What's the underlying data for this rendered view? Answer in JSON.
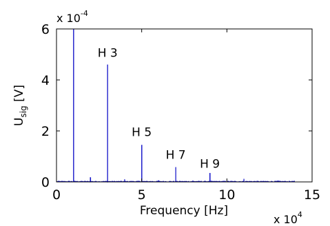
{
  "chart_data": {
    "type": "line",
    "title": "",
    "xlabel": "Frequency [Hz]",
    "ylabel_main": "U",
    "ylabel_sub": "sig",
    "ylabel_unit": " [V]",
    "x_multiplier_base": "x 10",
    "x_multiplier_exp": "4",
    "y_multiplier_base": "x 10",
    "y_multiplier_exp": "-4",
    "xlim": [
      0,
      15
    ],
    "ylim": [
      0,
      6
    ],
    "x_ticks": [
      0,
      5,
      10,
      15
    ],
    "x_tick_labels": [
      "0",
      "5",
      "10",
      "15"
    ],
    "y_ticks": [
      0,
      2,
      4,
      6
    ],
    "y_tick_labels": [
      "0",
      "2",
      "4",
      "6"
    ],
    "grid": false,
    "line_color": "#1010c8",
    "x_data_end": 14,
    "noise_level": 0.03,
    "peaks": [
      {
        "x": 1.0,
        "y": 6.0
      },
      {
        "x": 2.0,
        "y": 0.18
      },
      {
        "x": 3.0,
        "y": 4.6
      },
      {
        "x": 4.0,
        "y": 0.1
      },
      {
        "x": 5.0,
        "y": 1.45
      },
      {
        "x": 6.0,
        "y": 0.06
      },
      {
        "x": 7.0,
        "y": 0.58
      },
      {
        "x": 8.0,
        "y": 0.05
      },
      {
        "x": 9.0,
        "y": 0.35
      },
      {
        "x": 11.0,
        "y": 0.12
      },
      {
        "x": 13.0,
        "y": 0.05
      }
    ],
    "annotations": [
      {
        "text": "H 3",
        "x": 3.0,
        "y": 4.9
      },
      {
        "text": "H 5",
        "x": 5.0,
        "y": 1.8
      },
      {
        "text": "H 7",
        "x": 7.0,
        "y": 0.9
      },
      {
        "text": "H 9",
        "x": 9.0,
        "y": 0.55
      }
    ]
  }
}
